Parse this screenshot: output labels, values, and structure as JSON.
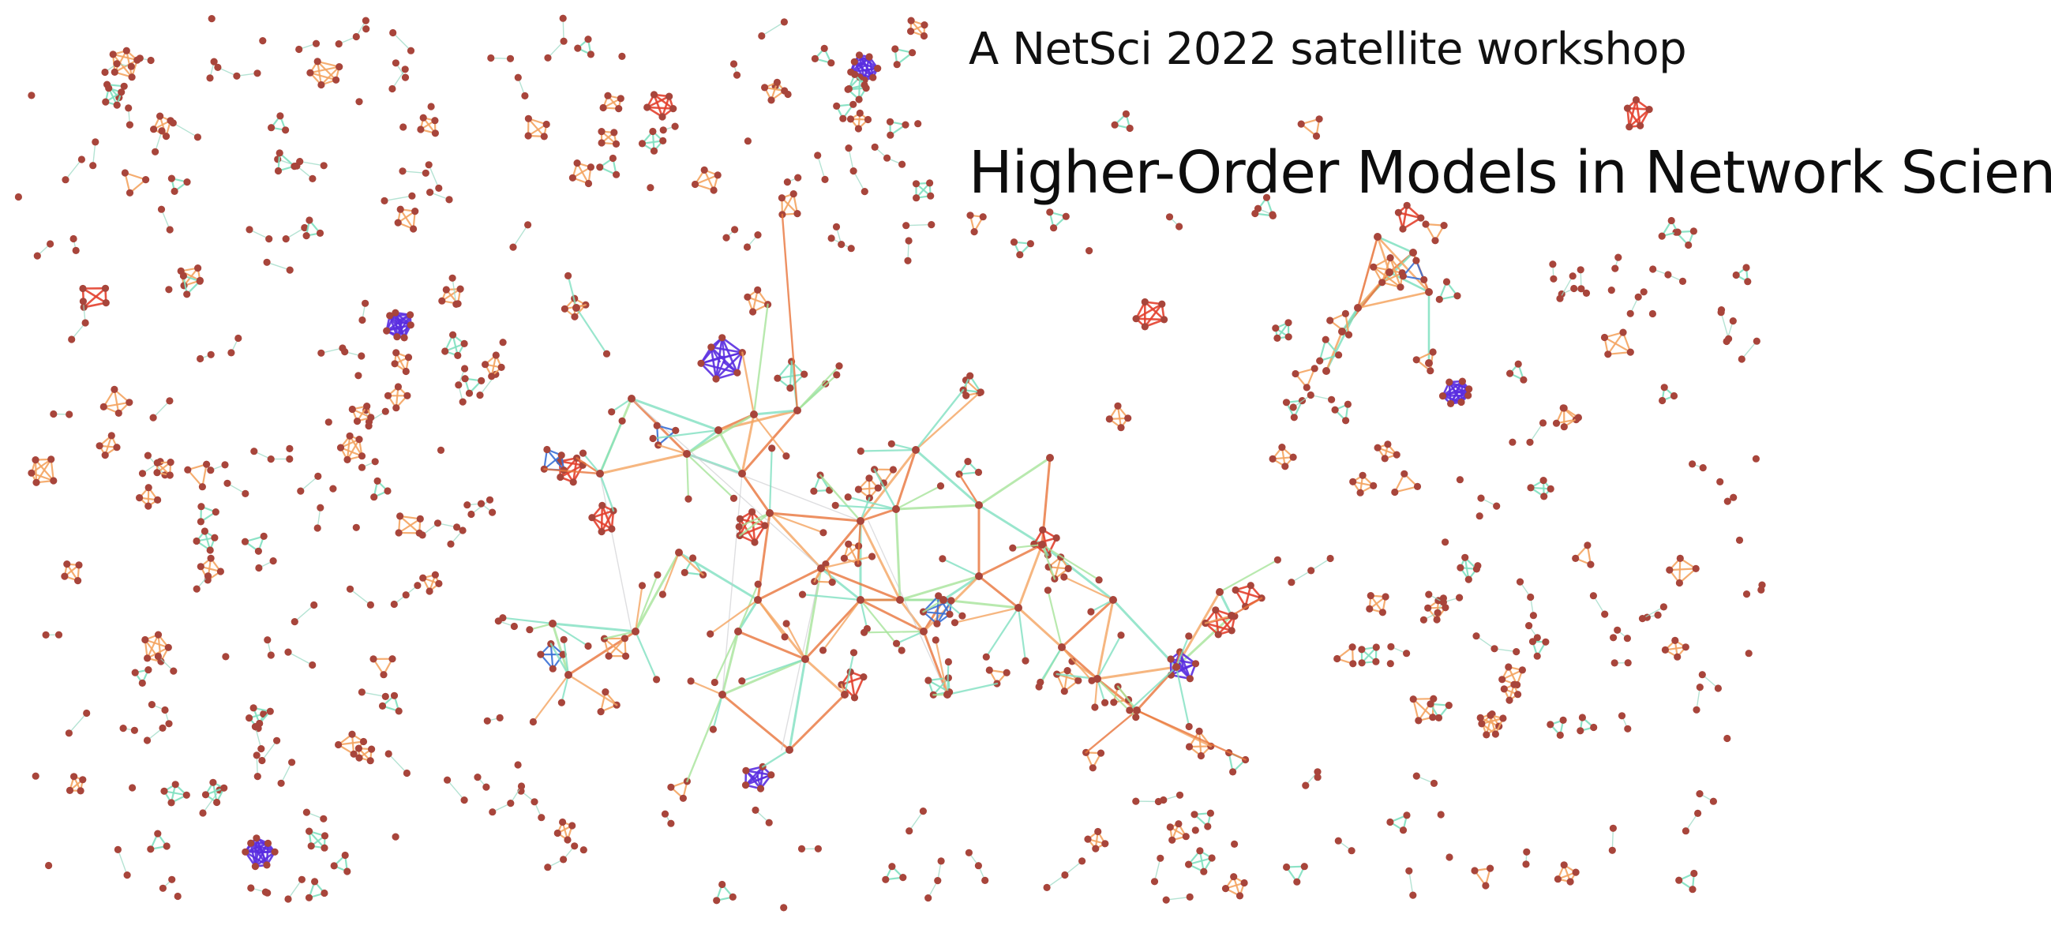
{
  "header": {
    "subtitle": "A NetSci 2022 satellite workshop",
    "title": "Higher-Order Models in Network Science"
  },
  "colors": {
    "background": "#ffffff",
    "node": "#a8453b",
    "edge_pair": "#9bd9c4",
    "edge_teal": "#7fe0c0",
    "edge_green": "#a6e39a",
    "edge_orange": "#f4a460",
    "edge_darkorange": "#e8743b",
    "edge_red": "#e3402e",
    "edge_blue": "#3a70d6",
    "edge_violet": "#5a2de0",
    "edge_gray": "#c8c8cc"
  }
}
